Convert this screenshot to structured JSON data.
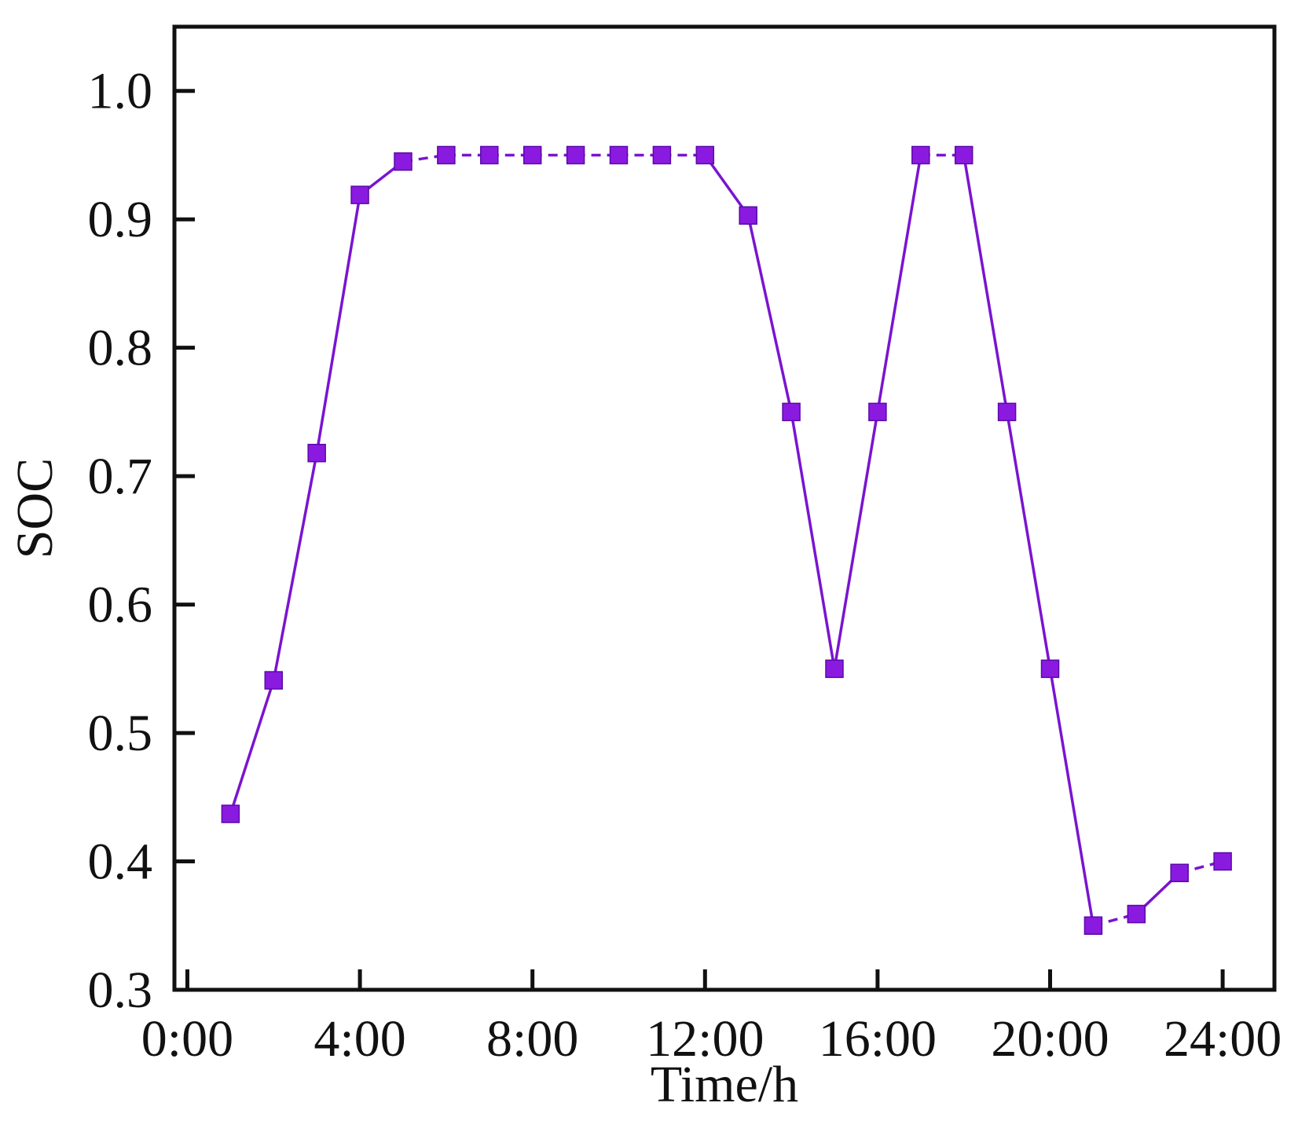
{
  "chart_data": {
    "type": "line",
    "xlabel": "Time/h",
    "ylabel": "SOC",
    "xlim": [
      -0.3,
      25.2
    ],
    "ylim": [
      0.3,
      1.05
    ],
    "x_ticks": [
      0,
      4,
      8,
      12,
      16,
      20,
      24
    ],
    "x_tick_labels": [
      "0:00",
      "4:00",
      "8:00",
      "12:00",
      "16:00",
      "20:00",
      "24:00"
    ],
    "y_ticks": [
      0.3,
      0.4,
      0.5,
      0.6,
      0.7,
      0.8,
      0.9,
      1.0
    ],
    "y_tick_labels": [
      "0.3",
      "0.4",
      "0.5",
      "0.6",
      "0.7",
      "0.8",
      "0.9",
      "1.0"
    ],
    "grid": false,
    "marker": "square",
    "color": "#8b1ae0",
    "line_color": "#7a14d0",
    "series": [
      {
        "x": [
          1,
          2,
          3,
          4,
          5,
          6,
          7,
          8,
          9,
          10,
          11,
          12,
          13,
          14,
          15,
          16,
          17,
          18,
          19,
          20,
          21,
          22,
          23,
          24
        ],
        "values": [
          0.437,
          0.541,
          0.718,
          0.919,
          0.945,
          0.95,
          0.95,
          0.95,
          0.95,
          0.95,
          0.95,
          0.95,
          0.903,
          0.75,
          0.55,
          0.75,
          0.95,
          0.95,
          0.75,
          0.55,
          0.35,
          0.359,
          0.391,
          0.4
        ],
        "segment_styles": [
          "solid",
          "solid",
          "solid",
          "solid",
          "dashed",
          "dashed",
          "dashed",
          "dashed",
          "dashed",
          "dashed",
          "dashed",
          "solid",
          "solid",
          "solid",
          "solid",
          "solid",
          "dashed",
          "solid",
          "solid",
          "solid",
          "dashed",
          "solid",
          "dashed"
        ]
      }
    ]
  }
}
